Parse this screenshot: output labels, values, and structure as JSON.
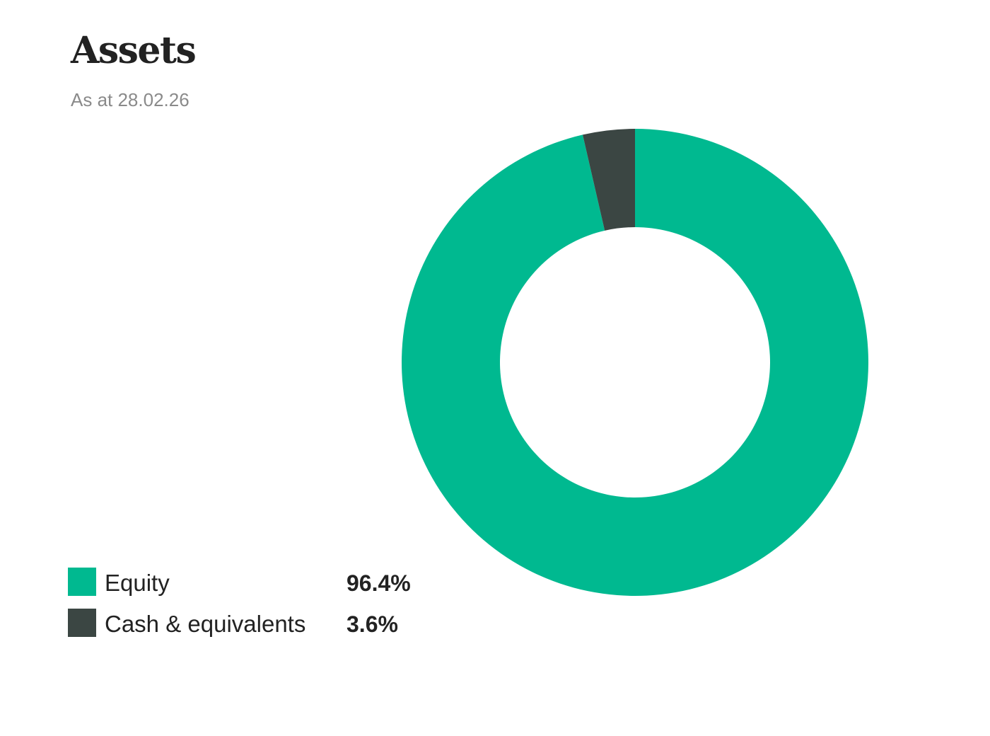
{
  "header": {
    "title": "Assets",
    "subtitle": "As at 28.02.26"
  },
  "legend": {
    "items": [
      {
        "label": "Equity",
        "value": "96.4%",
        "color": "#00b990"
      },
      {
        "label": "Cash & equivalents",
        "value": "3.6%",
        "color": "#3b4643"
      }
    ]
  },
  "chart_data": {
    "type": "pie",
    "variant": "donut",
    "title": "Assets",
    "subtitle": "As at 28.02.26",
    "categories": [
      "Equity",
      "Cash & equivalents"
    ],
    "values": [
      96.4,
      3.6
    ],
    "unit": "%",
    "colors": [
      "#00b990",
      "#3b4643"
    ],
    "start_angle": "12 o'clock, clockwise",
    "legend_position": "bottom-left"
  }
}
